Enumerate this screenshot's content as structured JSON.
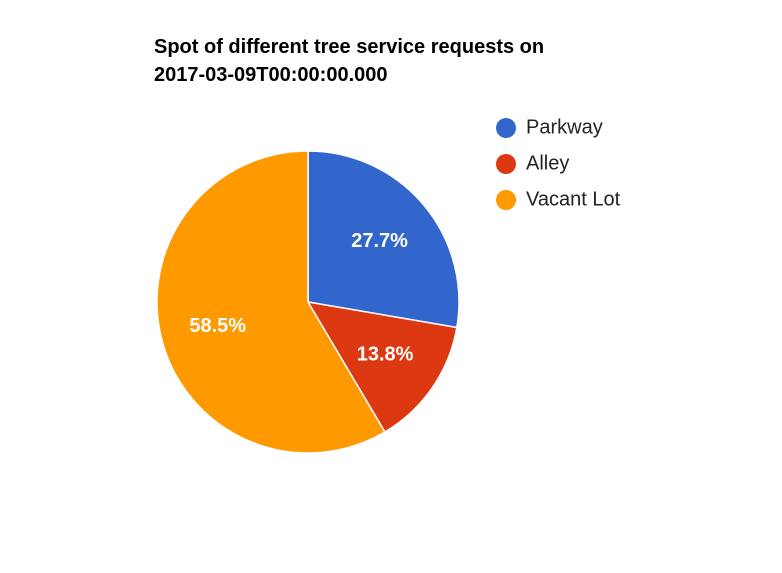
{
  "chart_data": {
    "type": "pie",
    "title_lines": [
      "Spot of different tree service requests on",
      "2017-03-09T00:00:00.000"
    ],
    "slices": [
      {
        "label": "Parkway",
        "value": 27.7,
        "display": "27.7%",
        "color": "#3366cc"
      },
      {
        "label": "Alley",
        "value": 13.8,
        "display": "13.8%",
        "color": "#dc3912"
      },
      {
        "label": "Vacant Lot",
        "value": 58.5,
        "display": "58.5%",
        "color": "#ff9900"
      }
    ],
    "legend_position": "right",
    "start_angle": "12 o'clock, clockwise"
  }
}
